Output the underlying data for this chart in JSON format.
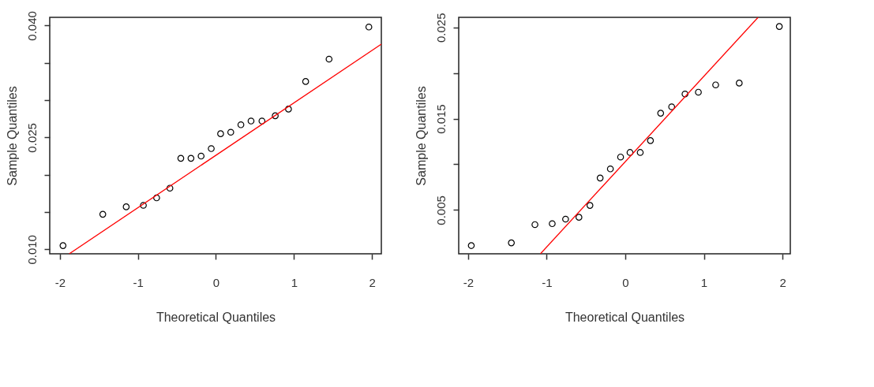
{
  "chart_data": [
    {
      "type": "scatter",
      "xlabel": "Theoretical Quantiles",
      "ylabel": "Sample Quantiles",
      "xlim": [
        -2.13,
        2.12
      ],
      "ylim": [
        0.0094,
        0.0411
      ],
      "xticks": [
        -2,
        -1,
        0,
        1,
        2
      ],
      "yticks": [
        {
          "value": 0.01,
          "label": "0.010"
        },
        {
          "value": 0.015,
          "label": null
        },
        {
          "value": 0.02,
          "label": null
        },
        {
          "value": 0.025,
          "label": "0.025"
        },
        {
          "value": 0.03,
          "label": null
        },
        {
          "value": 0.035,
          "label": null
        },
        {
          "value": 0.04,
          "label": "0.040"
        }
      ],
      "grid": false,
      "series": [
        {
          "marker": "circle",
          "color": "#000000",
          "x": [
            -1.96,
            -1.45,
            -1.15,
            -0.93,
            -0.76,
            -0.59,
            -0.45,
            -0.32,
            -0.19,
            -0.06,
            0.06,
            0.19,
            0.32,
            0.45,
            0.59,
            0.76,
            0.93,
            1.15,
            1.45,
            1.96
          ],
          "values": [
            0.0105,
            0.0147,
            0.0157,
            0.0159,
            0.0169,
            0.0182,
            0.0222,
            0.0222,
            0.0225,
            0.0235,
            0.0255,
            0.0257,
            0.0267,
            0.0272,
            0.0272,
            0.0279,
            0.0288,
            0.0325,
            0.0355,
            0.0398
          ]
        },
        {
          "type": "line",
          "color": "#ff0000",
          "line_style": "solid",
          "x": [
            -1.88,
            2.12
          ],
          "values": [
            0.0094,
            0.0375
          ]
        }
      ]
    },
    {
      "type": "scatter",
      "xlabel": "Theoretical Quantiles",
      "ylabel": "Sample Quantiles",
      "xlim": [
        -2.12,
        2.1
      ],
      "ylim": [
        0.0002,
        0.0261
      ],
      "xticks": [
        -2,
        -1,
        0,
        1,
        2
      ],
      "yticks": [
        {
          "value": 0.005,
          "label": "0.005"
        },
        {
          "value": 0.01,
          "label": null
        },
        {
          "value": 0.015,
          "label": "0.015"
        },
        {
          "value": 0.02,
          "label": null
        },
        {
          "value": 0.025,
          "label": "0.025"
        }
      ],
      "grid": false,
      "series": [
        {
          "marker": "circle",
          "color": "#000000",
          "x": [
            -1.96,
            -1.45,
            -1.15,
            -0.93,
            -0.76,
            -0.59,
            -0.45,
            -0.32,
            -0.19,
            -0.06,
            0.06,
            0.19,
            0.32,
            0.45,
            0.59,
            0.76,
            0.93,
            1.15,
            1.45,
            1.96
          ],
          "values": [
            0.0011,
            0.0014,
            0.0034,
            0.0035,
            0.004,
            0.0042,
            0.0055,
            0.0085,
            0.0095,
            0.0108,
            0.0113,
            0.0113,
            0.0126,
            0.0156,
            0.0163,
            0.0177,
            0.0179,
            0.0187,
            0.0189,
            0.0251
          ]
        },
        {
          "type": "line",
          "color": "#ff0000",
          "line_style": "solid",
          "x": [
            -1.08,
            1.69
          ],
          "values": [
            0.0002,
            0.0261
          ]
        }
      ]
    }
  ]
}
